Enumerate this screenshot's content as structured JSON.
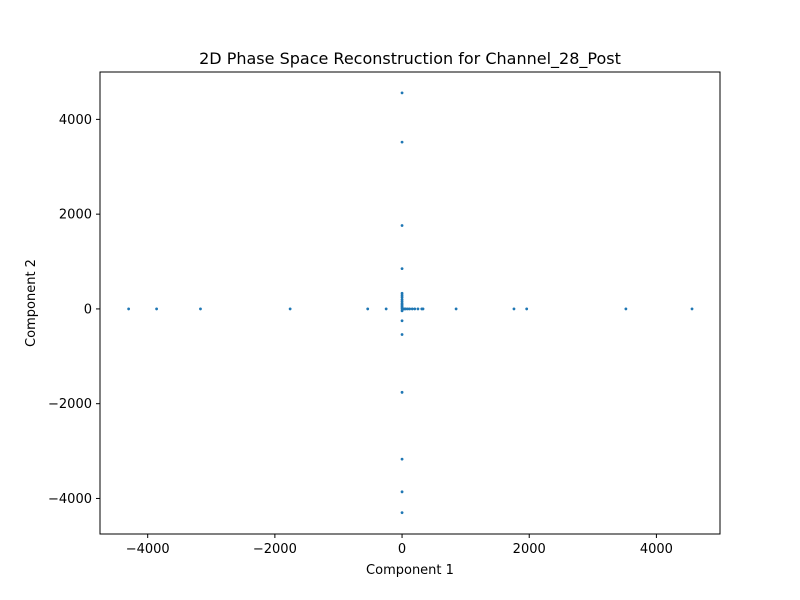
{
  "chart_data": {
    "type": "scatter",
    "title": "2D Phase Space Reconstruction for Channel_28_Post",
    "xlabel": "Component 1",
    "ylabel": "Component 2",
    "xlim": [
      -4750,
      5000
    ],
    "ylim": [
      -4750,
      5000
    ],
    "xticks": [
      -4000,
      -2000,
      0,
      2000,
      4000
    ],
    "yticks": [
      -4000,
      -2000,
      0,
      2000,
      4000
    ],
    "grid": false,
    "marker_color": "#1f77b4",
    "points": [
      {
        "x": -4300,
        "y": 0
      },
      {
        "x": -3860,
        "y": 0
      },
      {
        "x": -3170,
        "y": 0
      },
      {
        "x": -1760,
        "y": 0
      },
      {
        "x": -540,
        "y": 0
      },
      {
        "x": -250,
        "y": 0
      },
      {
        "x": 0,
        "y": 0
      },
      {
        "x": 20,
        "y": 0
      },
      {
        "x": 40,
        "y": 0
      },
      {
        "x": 60,
        "y": 0
      },
      {
        "x": 90,
        "y": 0
      },
      {
        "x": 120,
        "y": 0
      },
      {
        "x": 160,
        "y": 0
      },
      {
        "x": 200,
        "y": 0
      },
      {
        "x": 250,
        "y": 0
      },
      {
        "x": 310,
        "y": 0
      },
      {
        "x": 330,
        "y": 0
      },
      {
        "x": 850,
        "y": 0
      },
      {
        "x": 1760,
        "y": 0
      },
      {
        "x": 1960,
        "y": 0
      },
      {
        "x": 3520,
        "y": 0
      },
      {
        "x": 4560,
        "y": 0
      },
      {
        "x": 0,
        "y": 4560
      },
      {
        "x": 0,
        "y": 3520
      },
      {
        "x": 0,
        "y": 1760
      },
      {
        "x": 0,
        "y": 850
      },
      {
        "x": 0,
        "y": 330
      },
      {
        "x": 0,
        "y": 290
      },
      {
        "x": 0,
        "y": 250
      },
      {
        "x": 0,
        "y": 200
      },
      {
        "x": 0,
        "y": 160
      },
      {
        "x": 0,
        "y": 120
      },
      {
        "x": 0,
        "y": 90
      },
      {
        "x": 0,
        "y": 60
      },
      {
        "x": 0,
        "y": 30
      },
      {
        "x": 0,
        "y": -40
      },
      {
        "x": 0,
        "y": -250
      },
      {
        "x": 0,
        "y": -540
      },
      {
        "x": 0,
        "y": -1760
      },
      {
        "x": 0,
        "y": -3170
      },
      {
        "x": 0,
        "y": -3860
      },
      {
        "x": 0,
        "y": -4300
      }
    ]
  }
}
